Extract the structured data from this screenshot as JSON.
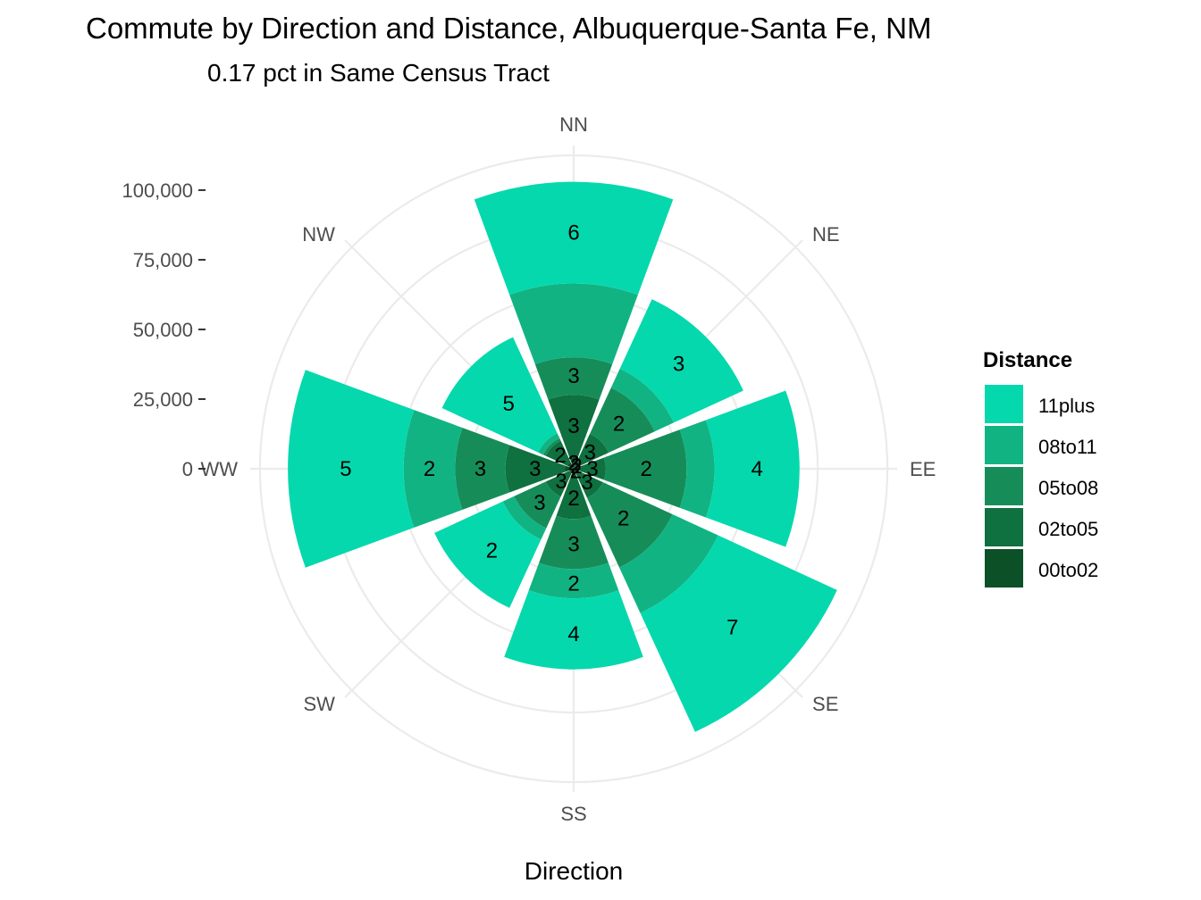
{
  "chart_data": {
    "type": "bar",
    "coord": "polar",
    "title": "Commute by Direction and Distance, Albuquerque-Santa Fe, NM",
    "subtitle": "0.17 pct in Same Census Tract",
    "xlabel": "Direction",
    "ylabel": "",
    "categories": [
      "NN",
      "NE",
      "EE",
      "SE",
      "SS",
      "SW",
      "WW",
      "NW"
    ],
    "y_ticks": [
      0,
      25000,
      50000,
      75000,
      100000
    ],
    "y_tick_labels": [
      "0",
      "25,000",
      "50,000",
      "75,000",
      "100,000"
    ],
    "ylim": [
      0,
      116000
    ],
    "grid": true,
    "legend": {
      "title": "Distance",
      "position": "right"
    },
    "series": [
      {
        "name": "00to02",
        "color": "#0b5027",
        "values": [
          4300,
          2800,
          2000,
          2200,
          3000,
          1600,
          3200,
          2500
        ],
        "labels": [
          "2",
          "2",
          "",
          "2",
          "",
          "",
          "",
          ""
        ]
      },
      {
        "name": "02to05",
        "color": "#0f7040",
        "values": [
          26500,
          13800,
          11500,
          11500,
          18000,
          11000,
          24500,
          11000
        ],
        "labels": [
          "3",
          "3",
          "3",
          "3",
          "2",
          "3",
          "3",
          "2"
        ]
      },
      {
        "name": "05to08",
        "color": "#168d59",
        "values": [
          40000,
          32000,
          40500,
          39000,
          36000,
          23500,
          42500,
          12000
        ],
        "labels": [
          "3",
          "2",
          "2",
          "2",
          "3",
          "3",
          "3",
          ""
        ]
      },
      {
        "name": "08to11",
        "color": "#12b382",
        "values": [
          66500,
          39500,
          50500,
          57000,
          46500,
          28000,
          61000,
          14000
        ],
        "labels": [
          "",
          "",
          "",
          "",
          "2",
          "",
          "2",
          ""
        ]
      },
      {
        "name": "11plus",
        "color": "#05d8ad",
        "values": [
          103000,
          67000,
          81000,
          104000,
          72000,
          55000,
          102500,
          52000
        ],
        "labels": [
          "6",
          "3",
          "4",
          "7",
          "4",
          "2",
          "5",
          "5"
        ]
      }
    ],
    "legend_order": [
      "11plus",
      "08to11",
      "05to08",
      "02to05",
      "00to02"
    ]
  }
}
